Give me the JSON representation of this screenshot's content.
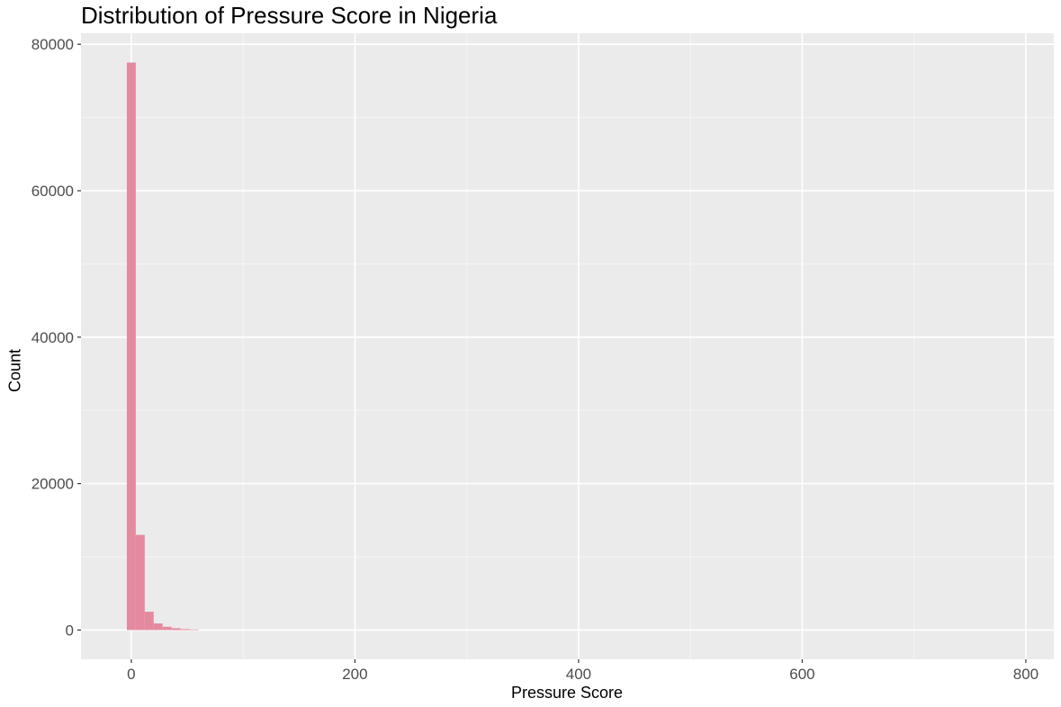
{
  "chart_data": {
    "type": "bar",
    "title": "Distribution of Pressure Score in Nigeria",
    "xlabel": "Pressure Score",
    "ylabel": "Count",
    "bin_width": 8,
    "bins": [
      {
        "x0": -4,
        "x1": 4,
        "count": 77500
      },
      {
        "x0": 4,
        "x1": 12,
        "count": 13000
      },
      {
        "x0": 12,
        "x1": 20,
        "count": 2500
      },
      {
        "x0": 20,
        "x1": 28,
        "count": 900
      },
      {
        "x0": 28,
        "x1": 36,
        "count": 450
      },
      {
        "x0": 36,
        "x1": 44,
        "count": 250
      },
      {
        "x0": 44,
        "x1": 52,
        "count": 130
      },
      {
        "x0": 52,
        "x1": 60,
        "count": 80
      }
    ],
    "xlim": [
      -45,
      825
    ],
    "ylim": [
      -4000,
      81500
    ],
    "x_ticks": [
      0,
      200,
      400,
      600,
      800
    ],
    "x_tick_labels": [
      "0",
      "200",
      "400",
      "600",
      "800"
    ],
    "x_minor": [
      100,
      300,
      500,
      700
    ],
    "y_ticks": [
      0,
      20000,
      40000,
      60000,
      80000
    ],
    "y_tick_labels": [
      "0",
      "20000",
      "40000",
      "60000",
      "80000"
    ],
    "y_minor": [
      10000,
      30000,
      50000,
      70000
    ],
    "grid": true,
    "colors": {
      "bar": "#E48A9E",
      "panel": "#EBEBEB",
      "grid_major": "#FFFFFF",
      "grid_minor": "#F5F5F5"
    }
  }
}
